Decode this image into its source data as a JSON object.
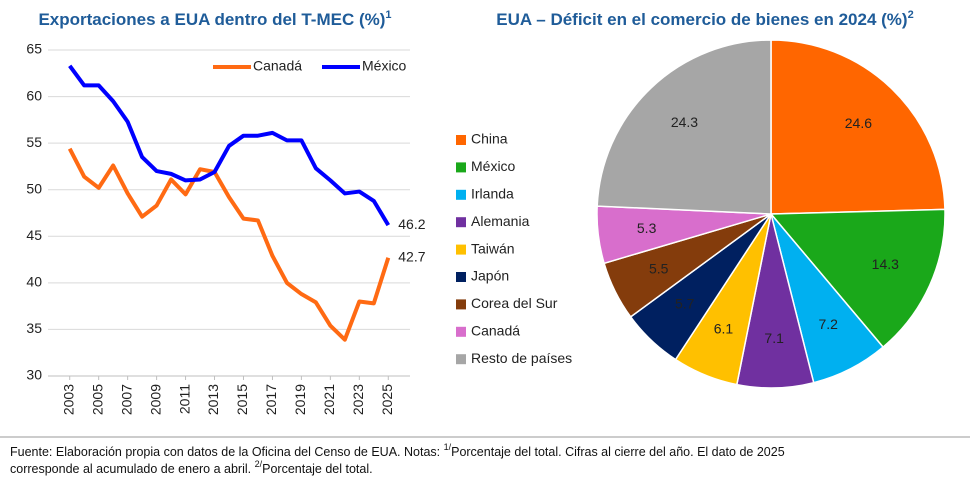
{
  "chart_data": [
    {
      "type": "line",
      "title": "Exportaciones a EUA dentro del T-MEC (%)",
      "title_sup": "1",
      "x": [
        2003,
        2004,
        2005,
        2006,
        2007,
        2008,
        2009,
        2010,
        2011,
        2012,
        2013,
        2014,
        2015,
        2016,
        2017,
        2018,
        2019,
        2020,
        2021,
        2022,
        2023,
        2024,
        2025
      ],
      "series": [
        {
          "name": "Canadá",
          "color": "#ff6a13",
          "values": [
            54.4,
            51.4,
            50.2,
            52.6,
            49.6,
            47.1,
            48.3,
            51.1,
            49.5,
            52.2,
            51.9,
            49.2,
            46.9,
            46.7,
            42.9,
            40.0,
            38.8,
            37.9,
            35.4,
            33.9,
            38.0,
            37.8,
            42.7
          ]
        },
        {
          "name": "México",
          "color": "#0000ff",
          "values": [
            63.3,
            61.2,
            61.2,
            59.5,
            57.3,
            53.5,
            52.0,
            51.7,
            51.0,
            51.1,
            51.9,
            54.7,
            55.8,
            55.8,
            56.1,
            55.3,
            55.3,
            52.3,
            51.0,
            49.6,
            49.8,
            48.8,
            46.2
          ]
        }
      ],
      "xlim": [
        2001.5,
        2026.5
      ],
      "xticks": [
        2003,
        2005,
        2007,
        2009,
        2011,
        2013,
        2015,
        2017,
        2019,
        2021,
        2023,
        2025
      ],
      "ylim": [
        30,
        65
      ],
      "yticks": [
        30,
        35,
        40,
        45,
        50,
        55,
        60,
        65
      ],
      "grid": true
    },
    {
      "type": "pie",
      "title": "EUA – Déficit en el comercio de bienes en 2024 (%)",
      "title_sup": "2",
      "categories": [
        "China",
        "México",
        "Irlanda",
        "Alemania",
        "Taiwán",
        "Japón",
        "Corea del Sur",
        "Canadá",
        "Resto de países"
      ],
      "values": [
        24.6,
        14.3,
        7.2,
        7.1,
        6.1,
        5.7,
        5.5,
        5.3,
        24.3
      ],
      "colors": [
        "#ff6600",
        "#1aa81a",
        "#00b0f0",
        "#7030a0",
        "#ffc000",
        "#002060",
        "#843c0c",
        "#d86ecc",
        "#a6a6a6"
      ]
    }
  ],
  "footer": {
    "line1": [
      "Fuente: Elaboración propia con datos de la Oficina del Censo de EUA. Notas: ",
      "1/",
      "Porcentaje del total. Cifras al cierre del año. El dato de 2025"
    ],
    "line2": [
      "corresponde al acumulado de enero a abril. ",
      "2/",
      "Porcentaje del total."
    ]
  }
}
